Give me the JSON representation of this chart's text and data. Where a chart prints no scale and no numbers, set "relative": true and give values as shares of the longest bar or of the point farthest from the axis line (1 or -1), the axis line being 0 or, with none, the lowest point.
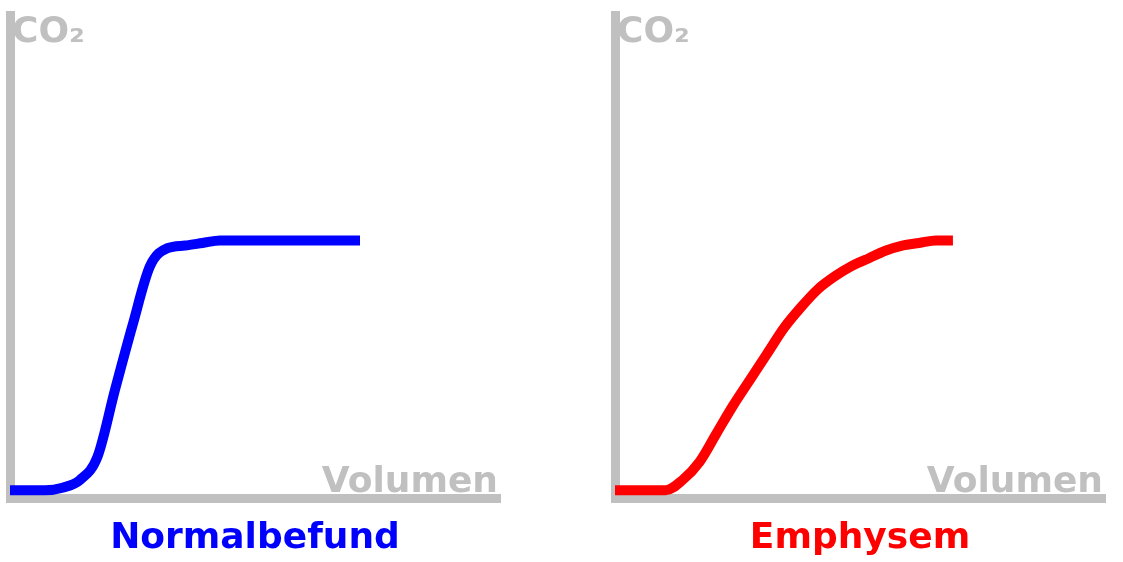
{
  "chart_data": [
    {
      "type": "line",
      "title": "Normalbefund",
      "xlabel": "Volumen",
      "ylabel": "CO₂",
      "relative": true,
      "marker": "none",
      "categories": [
        null,
        null,
        null,
        null,
        null,
        null,
        null,
        null,
        null,
        null,
        null,
        null,
        null,
        null,
        null,
        null,
        null,
        null,
        null,
        null,
        null,
        null,
        null,
        null,
        null,
        null,
        null,
        null,
        null
      ],
      "series": [
        {
          "color": "#0000ff",
          "values": [
            0.03,
            0.03,
            0.03,
            0.04,
            0.07,
            0.16,
            0.42,
            0.67,
            0.9,
            0.97,
            0.98,
            0.99,
            1.0,
            1.0,
            1.0,
            1.0,
            1.0,
            1.0,
            1.0,
            1.0,
            1.0,
            null,
            null,
            null,
            null,
            null,
            null,
            null,
            null
          ]
        }
      ]
    },
    {
      "type": "line",
      "title": "Emphysem",
      "xlabel": "Volumen",
      "ylabel": "CO₂",
      "relative": true,
      "marker": "none",
      "categories": [
        null,
        null,
        null,
        null,
        null,
        null,
        null,
        null,
        null,
        null,
        null,
        null,
        null,
        null,
        null,
        null,
        null,
        null,
        null,
        null,
        null,
        null,
        null,
        null,
        null,
        null,
        null,
        null,
        null,
        null
      ],
      "series": [
        {
          "color": "#ff0000",
          "values": [
            0.03,
            0.03,
            0.03,
            0.03,
            0.07,
            0.14,
            0.25,
            0.36,
            0.46,
            0.56,
            0.66,
            0.74,
            0.81,
            0.86,
            0.9,
            0.93,
            0.96,
            0.98,
            0.99,
            1.0,
            1.0,
            null,
            null,
            null,
            null,
            null,
            null,
            null,
            null,
            null
          ]
        }
      ]
    }
  ]
}
